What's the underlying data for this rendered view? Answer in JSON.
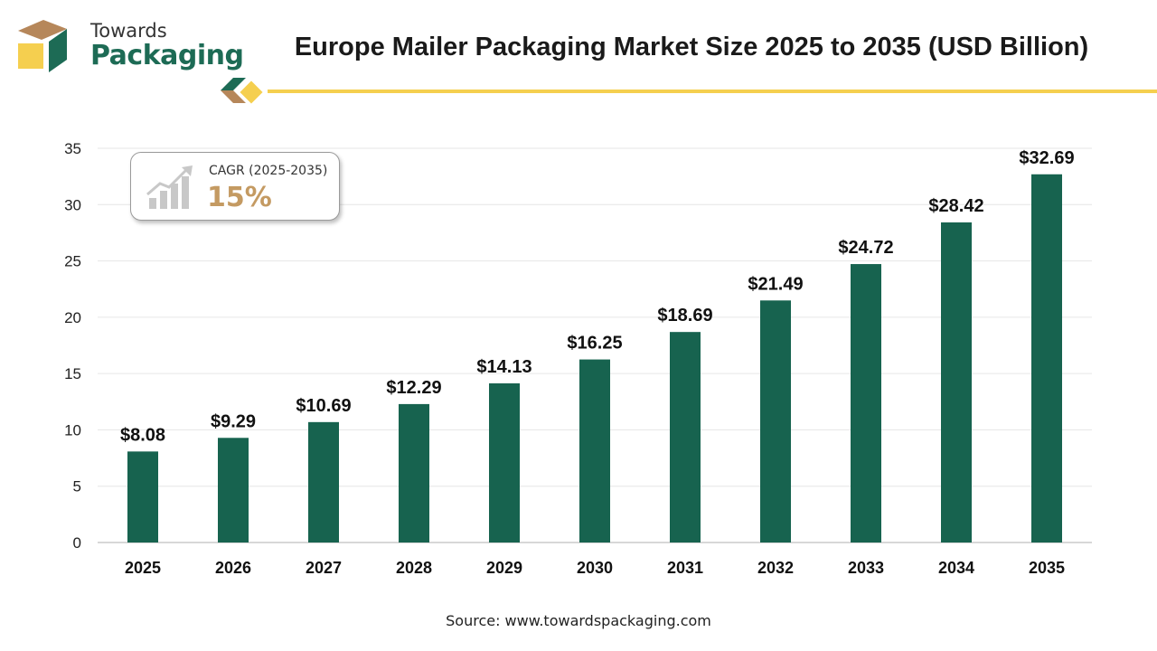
{
  "brand": {
    "line1": "Towards",
    "line2": "Packaging",
    "colors": {
      "green": "#1d6b55",
      "tan": "#c49a62",
      "yellow": "#f5cf4f"
    }
  },
  "cagr": {
    "label": "CAGR (2025-2035)",
    "value": "15%"
  },
  "source": "Source: www.towardspackaging.com",
  "chart_data": {
    "type": "bar",
    "title": "Europe Mailer Packaging Market Size 2025 to 2035 (USD Billion)",
    "xlabel": "",
    "ylabel": "",
    "categories": [
      "2025",
      "2026",
      "2027",
      "2028",
      "2029",
      "2030",
      "2031",
      "2032",
      "2033",
      "2034",
      "2035"
    ],
    "values": [
      8.08,
      9.29,
      10.69,
      12.29,
      14.13,
      16.25,
      18.69,
      21.49,
      24.72,
      28.42,
      32.69
    ],
    "value_labels": [
      "$8.08",
      "$9.29",
      "$10.69",
      "$12.29",
      "$14.13",
      "$16.25",
      "$18.69",
      "$21.49",
      "$24.72",
      "$28.42",
      "$32.69"
    ],
    "ylim": [
      0,
      35
    ],
    "yticks": [
      0,
      5,
      10,
      15,
      20,
      25,
      30,
      35
    ],
    "grid": true,
    "bar_color": "#17634f"
  }
}
